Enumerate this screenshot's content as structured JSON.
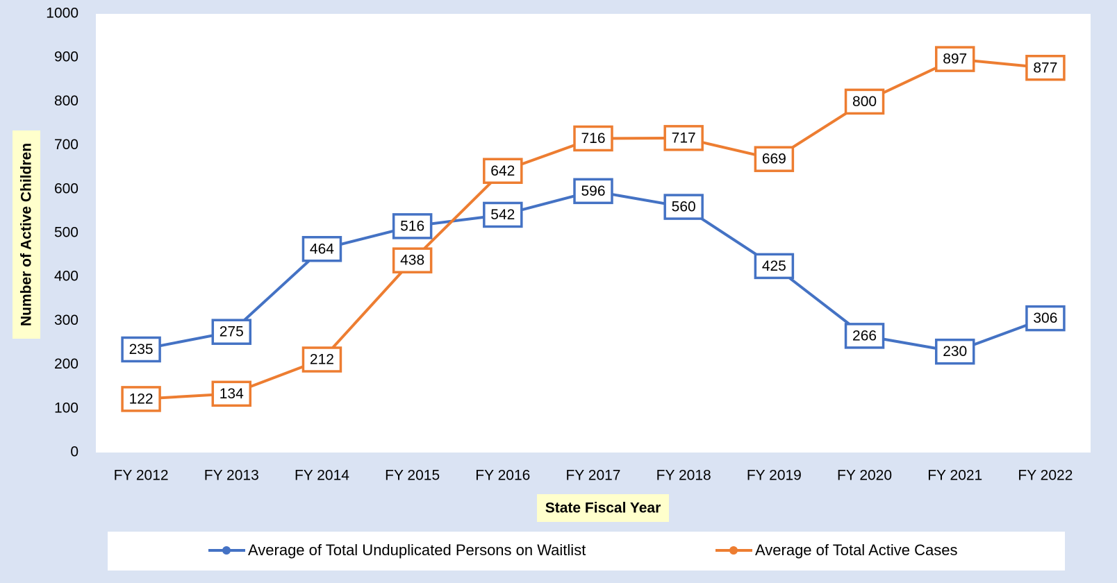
{
  "chart_data": {
    "type": "line",
    "x_label": "State Fiscal Year",
    "y_label": "Number of Active Children",
    "categories": [
      "FY 2012",
      "FY 2013",
      "FY 2014",
      "FY 2015",
      "FY 2016",
      "FY 2017",
      "FY 2018",
      "FY 2019",
      "FY 2020",
      "FY 2021",
      "FY 2022"
    ],
    "series": [
      {
        "name": "Average of Total Unduplicated Persons on Waitlist",
        "color": "#4472c4",
        "values": [
          235,
          275,
          464,
          516,
          542,
          596,
          560,
          425,
          266,
          230,
          306
        ]
      },
      {
        "name": "Average of Total Active Cases",
        "color": "#ed7d31",
        "values": [
          122,
          134,
          212,
          438,
          642,
          716,
          717,
          669,
          800,
          897,
          877
        ]
      }
    ],
    "ylim": [
      0,
      1000
    ],
    "yticks": [
      0,
      100,
      200,
      300,
      400,
      500,
      600,
      700,
      800,
      900,
      1000
    ],
    "legend": "bottom"
  }
}
